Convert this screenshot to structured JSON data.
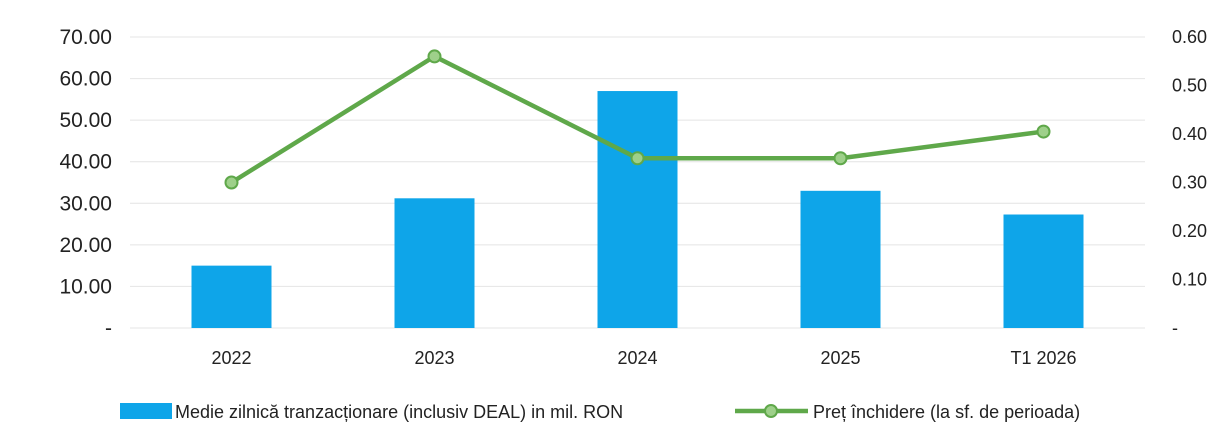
{
  "chart_data": {
    "type": "bar+line",
    "categories": [
      "2022",
      "2023",
      "2024",
      "2025",
      "T1 2026"
    ],
    "series": [
      {
        "name": "Medie zilnică tranzacționare (inclusiv DEAL) in mil. RON",
        "type": "bar",
        "axis": "left",
        "color": "#0ea5e9",
        "values": [
          15.0,
          31.2,
          57.0,
          33.0,
          27.3
        ]
      },
      {
        "name": "Preț închidere (la sf. de perioada)",
        "type": "line",
        "axis": "right",
        "color": "#5fa84a",
        "marker_color": "#9ed08a",
        "values": [
          0.3,
          0.56,
          0.35,
          0.35,
          0.405
        ]
      }
    ],
    "y_left": {
      "ylim": [
        0,
        70
      ],
      "ticks": [
        0,
        10,
        20,
        30,
        40,
        50,
        60,
        70
      ],
      "tick_labels": [
        "-",
        "10.00",
        "20.00",
        "30.00",
        "40.00",
        "50.00",
        "60.00",
        "70.00"
      ]
    },
    "y_right": {
      "ylim": [
        0,
        0.6
      ],
      "ticks": [
        0,
        0.1,
        0.2,
        0.3,
        0.4,
        0.5,
        0.6
      ],
      "tick_labels": [
        "-",
        "0.10",
        "0.20",
        "0.30",
        "0.40",
        "0.50",
        "0.60"
      ]
    },
    "grid": true,
    "legend_position": "bottom",
    "title": "",
    "xlabel": "",
    "ylabel": ""
  }
}
